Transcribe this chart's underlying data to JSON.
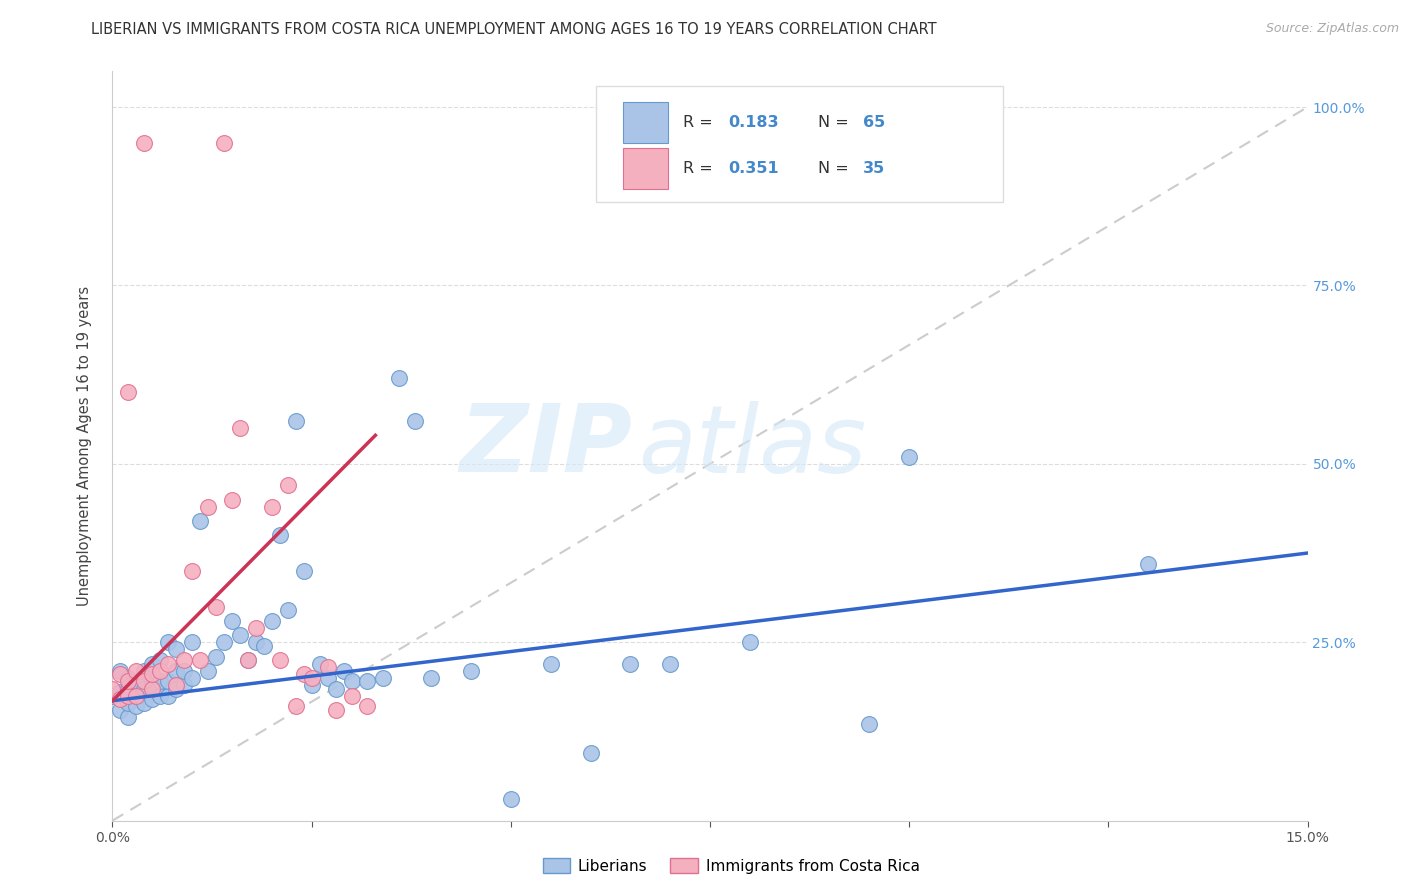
{
  "title": "LIBERIAN VS IMMIGRANTS FROM COSTA RICA UNEMPLOYMENT AMONG AGES 16 TO 19 YEARS CORRELATION CHART",
  "source": "Source: ZipAtlas.com",
  "ylabel": "Unemployment Among Ages 16 to 19 years",
  "xlim": [
    0,
    0.15
  ],
  "ylim": [
    0,
    1.05
  ],
  "liberian_color": "#aac4e8",
  "liberian_edge": "#6699cc",
  "costarica_color": "#f5b0c0",
  "costarica_edge": "#e07090",
  "trend_liberian_color": "#3366cc",
  "trend_costarica_color": "#cc3355",
  "diag_color": "#cccccc",
  "grid_color": "#dddddd",
  "r_liberian": 0.183,
  "n_liberian": 65,
  "r_costarica": 0.351,
  "n_costarica": 35,
  "legend_r_color": "#4488cc",
  "legend_label_liberian": "Liberians",
  "legend_label_costarica": "Immigrants from Costa Rica",
  "watermark_zip": "ZIP",
  "watermark_atlas": "atlas",
  "background_color": "#ffffff",
  "lib_trend_x0": 0.0,
  "lib_trend_y0": 0.168,
  "lib_trend_x1": 0.15,
  "lib_trend_y1": 0.375,
  "cr_trend_x0": 0.0,
  "cr_trend_y0": 0.168,
  "cr_trend_x1": 0.033,
  "cr_trend_y1": 0.54,
  "lib_x": [
    0.0,
    0.001,
    0.001,
    0.001,
    0.002,
    0.002,
    0.002,
    0.002,
    0.003,
    0.003,
    0.003,
    0.004,
    0.004,
    0.004,
    0.005,
    0.005,
    0.005,
    0.006,
    0.006,
    0.006,
    0.007,
    0.007,
    0.007,
    0.008,
    0.008,
    0.008,
    0.009,
    0.009,
    0.01,
    0.01,
    0.011,
    0.012,
    0.013,
    0.014,
    0.015,
    0.016,
    0.017,
    0.018,
    0.019,
    0.02,
    0.021,
    0.022,
    0.023,
    0.024,
    0.025,
    0.026,
    0.027,
    0.028,
    0.029,
    0.03,
    0.032,
    0.034,
    0.036,
    0.038,
    0.04,
    0.045,
    0.05,
    0.055,
    0.06,
    0.065,
    0.07,
    0.08,
    0.095,
    0.1,
    0.13
  ],
  "lib_y": [
    0.175,
    0.155,
    0.18,
    0.21,
    0.145,
    0.165,
    0.185,
    0.2,
    0.16,
    0.175,
    0.195,
    0.165,
    0.185,
    0.21,
    0.17,
    0.19,
    0.22,
    0.175,
    0.195,
    0.225,
    0.175,
    0.195,
    0.25,
    0.185,
    0.21,
    0.24,
    0.19,
    0.21,
    0.2,
    0.25,
    0.42,
    0.21,
    0.23,
    0.25,
    0.28,
    0.26,
    0.225,
    0.25,
    0.245,
    0.28,
    0.4,
    0.295,
    0.56,
    0.35,
    0.19,
    0.22,
    0.2,
    0.185,
    0.21,
    0.195,
    0.195,
    0.2,
    0.62,
    0.56,
    0.2,
    0.21,
    0.03,
    0.22,
    0.095,
    0.22,
    0.22,
    0.25,
    0.135,
    0.51,
    0.36
  ],
  "cr_x": [
    0.0,
    0.001,
    0.001,
    0.002,
    0.002,
    0.002,
    0.003,
    0.003,
    0.004,
    0.004,
    0.005,
    0.005,
    0.006,
    0.007,
    0.008,
    0.009,
    0.01,
    0.011,
    0.012,
    0.013,
    0.014,
    0.015,
    0.016,
    0.017,
    0.018,
    0.02,
    0.021,
    0.022,
    0.023,
    0.024,
    0.025,
    0.027,
    0.028,
    0.03,
    0.032
  ],
  "cr_y": [
    0.185,
    0.17,
    0.205,
    0.175,
    0.195,
    0.6,
    0.175,
    0.21,
    0.195,
    0.95,
    0.185,
    0.205,
    0.21,
    0.22,
    0.19,
    0.225,
    0.35,
    0.225,
    0.44,
    0.3,
    0.95,
    0.45,
    0.55,
    0.225,
    0.27,
    0.44,
    0.225,
    0.47,
    0.16,
    0.205,
    0.2,
    0.215,
    0.155,
    0.175,
    0.16
  ]
}
